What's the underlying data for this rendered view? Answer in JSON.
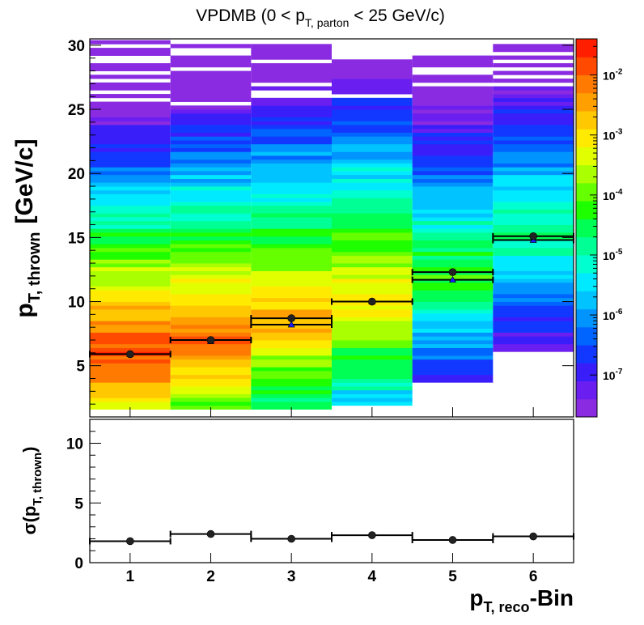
{
  "chart_data": [
    {
      "type": "heatmap",
      "title": "VPDMB (0 < p_{T, parton} < 25 GeV/c)",
      "title_parts": {
        "prefix": "VPDMB (0 < p",
        "sub": "T, parton",
        "suffix": " < 25 GeV/c)"
      },
      "ylabel": {
        "main": "p",
        "sub": "T, thrown",
        "unit": "[GeV/c]"
      },
      "x_categories": [
        "1",
        "2",
        "3",
        "4",
        "5",
        "6"
      ],
      "xlim": [
        0.5,
        6.5
      ],
      "ylim": [
        1,
        30.5
      ],
      "y_ticks": [
        "5",
        "10",
        "15",
        "20",
        "25",
        "30"
      ],
      "z_scale": "log",
      "zlim": [
        2e-08,
        0.04
      ],
      "colorbar_ticks": [
        {
          "base": "10",
          "exp": "-2",
          "value": 0.01
        },
        {
          "base": "10",
          "exp": "-3",
          "value": 0.001
        },
        {
          "base": "10",
          "exp": "-4",
          "value": 0.0001
        },
        {
          "base": "10",
          "exp": "-5",
          "value": 1e-05
        },
        {
          "base": "10",
          "exp": "-6",
          "value": 1e-06
        },
        {
          "base": "10",
          "exp": "-7",
          "value": 1e-07
        }
      ],
      "columns": [
        {
          "bin": 1,
          "ymin": 1.5,
          "ymax": 30.3,
          "peak_y": 6.0,
          "peak_z": 0.02,
          "width_lo": 2.6,
          "width_hi": 3.2
        },
        {
          "bin": 2,
          "ymin": 1.5,
          "ymax": 30.0,
          "peak_y": 7.0,
          "peak_z": 0.01,
          "width_lo": 2.6,
          "width_hi": 3.4
        },
        {
          "bin": 3,
          "ymin": 1.5,
          "ymax": 30.3,
          "peak_y": 8.5,
          "peak_z": 0.003,
          "width_lo": 2.8,
          "width_hi": 3.6
        },
        {
          "bin": 4,
          "ymin": 1.8,
          "ymax": 29.3,
          "peak_y": 10.0,
          "peak_z": 0.0015,
          "width_lo": 2.8,
          "width_hi": 3.8
        },
        {
          "bin": 5,
          "ymin": 3.6,
          "ymax": 29.8,
          "peak_y": 12.0,
          "peak_z": 6e-05,
          "width_lo": 3.0,
          "width_hi": 4.0
        },
        {
          "bin": 6,
          "ymin": 6.2,
          "ymax": 30.3,
          "peak_y": 15.0,
          "peak_z": 2e-05,
          "width_lo": 3.2,
          "width_hi": 4.2
        }
      ],
      "series": [
        {
          "marker": "circle",
          "x": [
            1,
            2,
            3,
            4,
            5,
            6
          ],
          "y": [
            5.9,
            7.0,
            8.7,
            10.0,
            12.3,
            15.1
          ]
        },
        {
          "marker": "triangle",
          "x": [
            1,
            2,
            3,
            4,
            5,
            6
          ],
          "y": [
            5.9,
            6.9,
            8.2,
            10.0,
            11.7,
            14.8
          ]
        }
      ]
    },
    {
      "type": "scatter",
      "ylabel": {
        "main": "σ(p",
        "sub": "T, thrown",
        "suffix": ")"
      },
      "xlabel": {
        "main": "p",
        "sub": "T, reco",
        "suffix": "-Bin"
      },
      "x_categories": [
        "1",
        "2",
        "3",
        "4",
        "5",
        "6"
      ],
      "xlim": [
        0.5,
        6.5
      ],
      "ylim": [
        0,
        12
      ],
      "y_ticks": [
        "0",
        "5",
        "10"
      ],
      "series": [
        {
          "marker": "circle",
          "x": [
            1,
            2,
            3,
            4,
            5,
            6
          ],
          "y": [
            1.8,
            2.4,
            2.0,
            2.3,
            1.9,
            2.2
          ]
        }
      ]
    }
  ]
}
